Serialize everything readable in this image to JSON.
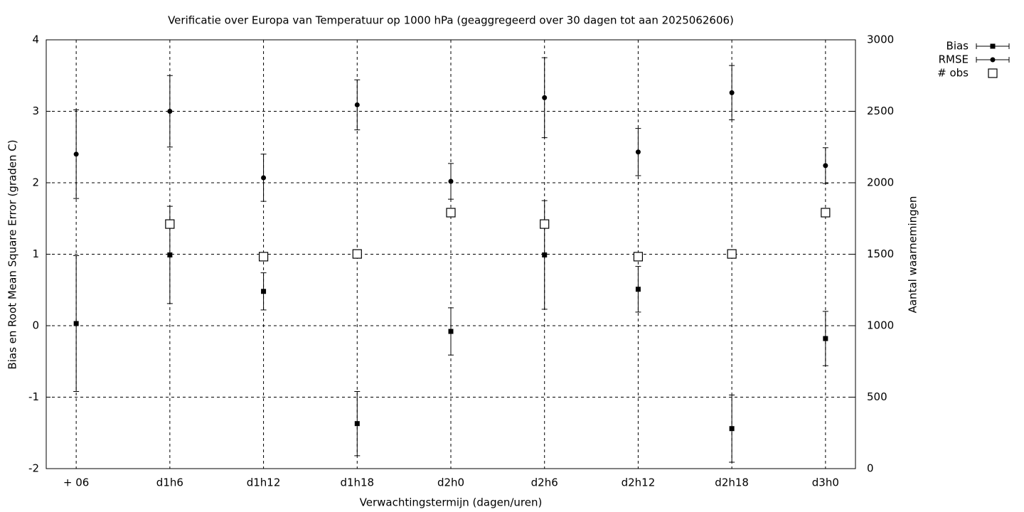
{
  "chart_data": {
    "type": "errorbar",
    "title": "Verificatie over Europa van Temperatuur op 1000 hPa (geaggregeerd over 30 dagen tot aan 2025062606)",
    "xlabel": "Verwachtingstermijn (dagen/uren)",
    "ylabel": "Bias en Root Mean Square Error (graden C)",
    "y2label": "Aantal waarnemingen",
    "categories": [
      "+ 06",
      "d1h6",
      "d1h12",
      "d1h18",
      "d2h0",
      "d2h6",
      "d2h12",
      "d2h18",
      "d3h0"
    ],
    "ylim": [
      -2,
      4
    ],
    "yticks": [
      -2,
      -1,
      0,
      1,
      2,
      3,
      4
    ],
    "y2lim": [
      0,
      3000
    ],
    "y2ticks": [
      0,
      500,
      1000,
      1500,
      2000,
      2500,
      3000
    ],
    "grid": true,
    "legend": "top-right-outside",
    "series": [
      {
        "name": "Bias",
        "color": "#000000",
        "marker": "square",
        "values": [
          0.03,
          0.99,
          0.48,
          -1.37,
          -0.08,
          0.99,
          0.51,
          -1.44,
          -0.18
        ],
        "errors": [
          0.95,
          0.68,
          0.26,
          0.45,
          0.33,
          0.76,
          0.32,
          0.47,
          0.38
        ]
      },
      {
        "name": "RMSE",
        "color": "#000000",
        "marker": "circle",
        "values": [
          2.4,
          3.0,
          2.07,
          3.09,
          2.02,
          3.19,
          2.43,
          3.26,
          2.24
        ],
        "errors": [
          0.62,
          0.5,
          0.33,
          0.35,
          0.25,
          0.56,
          0.33,
          0.38,
          0.25
        ]
      },
      {
        "name": "# obs",
        "color": "#000000",
        "marker": "open-square",
        "axis": "y2",
        "values": [
          null,
          1711,
          1483,
          1502,
          1791,
          1711,
          1483,
          1502,
          1791
        ]
      }
    ]
  }
}
